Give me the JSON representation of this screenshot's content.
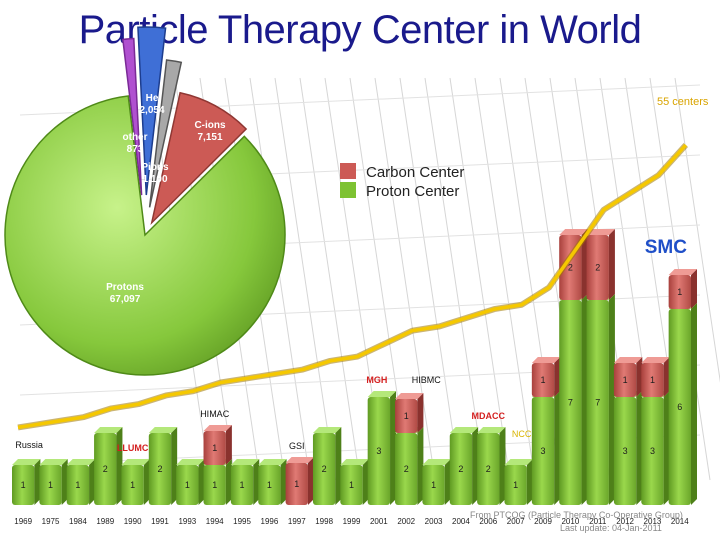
{
  "title": "Particle Therapy Center in World",
  "source_line": "From PTCOG (Particle Therapy Co-Operative Group)",
  "update_line": "Last update: 04-Jan-2011",
  "colors": {
    "title": "#1a1a8c",
    "proton": "#7dc232",
    "carbon": "#cc5a55",
    "trend": "#f2c200",
    "helium": "#3f6fd6",
    "pions": "#a8a8a8",
    "other": "#b050d0",
    "smc": "#1f4fc8",
    "accent_red": "#d42020"
  },
  "chart_data": [
    {
      "type": "pie",
      "slices": [
        {
          "label": "Protons",
          "value": 67097,
          "display": "67,097"
        },
        {
          "label": "C-ions",
          "value": 7151,
          "display": "7,151"
        },
        {
          "label": "Pions",
          "value": 1100,
          "display": "1,100"
        },
        {
          "label": "He",
          "value": 2054,
          "display": "2,054"
        },
        {
          "label": "other",
          "value": 873,
          "display": "873"
        }
      ]
    },
    {
      "type": "bar",
      "categories": [
        "1969",
        "1975",
        "1984",
        "1989",
        "1990",
        "1991",
        "1993",
        "1994",
        "1995",
        "1996",
        "1997",
        "1998",
        "1999",
        "2001",
        "2002",
        "2003",
        "2004",
        "2006",
        "2007",
        "2009",
        "2010",
        "2011",
        "2012",
        "2013",
        "2014"
      ],
      "series": [
        {
          "name": "Proton Center",
          "values": [
            1,
            1,
            1,
            2,
            1,
            2,
            1,
            1,
            1,
            1,
            0,
            2,
            1,
            3,
            2,
            1,
            2,
            2,
            1,
            3,
            7,
            7,
            3,
            3,
            6
          ]
        },
        {
          "name": "Carbon Center",
          "values": [
            0,
            0,
            0,
            0,
            0,
            0,
            0,
            1,
            0,
            0,
            1,
            0,
            0,
            0,
            1,
            0,
            0,
            0,
            0,
            1,
            2,
            2,
            1,
            1,
            1
          ]
        }
      ],
      "cumulative_label": "55 centers",
      "annotations": [
        {
          "text": "Russia",
          "category": "1969"
        },
        {
          "text": "LLUMC",
          "category": "1990",
          "highlight": true
        },
        {
          "text": "HIMAC",
          "category": "1994"
        },
        {
          "text": "GSI",
          "category": "1997"
        },
        {
          "text": "MGH",
          "category": "2001",
          "highlight": true
        },
        {
          "text": "HIBMC",
          "category": "2002"
        },
        {
          "text": "MDACC",
          "category": "2006",
          "highlight": true
        },
        {
          "text": "NCC",
          "category": "2007"
        },
        {
          "text": "SMC",
          "category": "2014",
          "big": true
        }
      ]
    }
  ],
  "legend": {
    "carbon": "Carbon Center",
    "proton": "Proton Center"
  }
}
